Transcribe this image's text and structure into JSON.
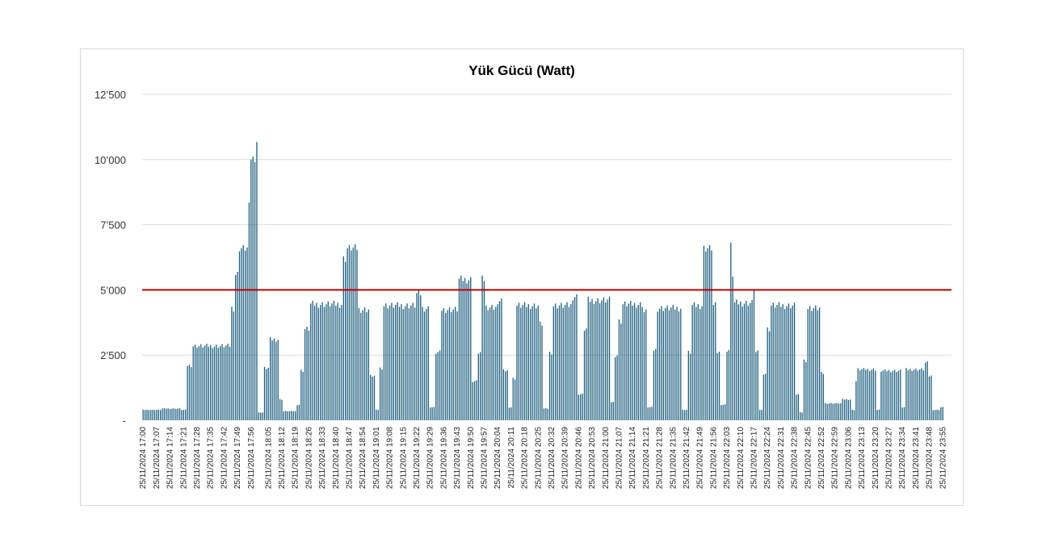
{
  "chart_data": {
    "type": "bar",
    "title": "Yük Gücü (Watt)",
    "xlabel": "",
    "ylabel": "",
    "ylim": [
      0,
      12500
    ],
    "y_ticks": [
      {
        "value": 0,
        "label": "-"
      },
      {
        "value": 2500,
        "label": "2’500"
      },
      {
        "value": 5000,
        "label": "5’000"
      },
      {
        "value": 7500,
        "label": "7’500"
      },
      {
        "value": 10000,
        "label": "10’000"
      },
      {
        "value": 12500,
        "label": "12’500"
      }
    ],
    "grid": true,
    "bar_color": "#1f5f7f",
    "threshold": {
      "value": 5000,
      "color": "#c00000"
    },
    "x_start": "25/11/2024 17:00",
    "x_end": "25/11/2024 23:59",
    "interval_minutes": 1,
    "tick_labels": [
      "25/11/2024 17:00",
      "25/11/2024 17:07",
      "25/11/2024 17:14",
      "25/11/2024 17:21",
      "25/11/2024 17:28",
      "25/11/2024 17:35",
      "25/11/2024 17:42",
      "25/11/2024 17:49",
      "25/11/2024 17:56",
      "25/11/2024 18:05",
      "25/11/2024 18:12",
      "25/11/2024 18:19",
      "25/11/2024 18:26",
      "25/11/2024 18:33",
      "25/11/2024 18:40",
      "25/11/2024 18:47",
      "25/11/2024 18:54",
      "25/11/2024 19:01",
      "25/11/2024 19:08",
      "25/11/2024 19:15",
      "25/11/2024 19:22",
      "25/11/2024 19:29",
      "25/11/2024 19:36",
      "25/11/2024 19:43",
      "25/11/2024 19:50",
      "25/11/2024 19:57",
      "25/11/2024 20:04",
      "25/11/2024 20:11",
      "25/11/2024 20:18",
      "25/11/2024 20:25",
      "25/11/2024 20:32",
      "25/11/2024 20:39",
      "25/11/2024 20:46",
      "25/11/2024 20:53",
      "25/11/2024 21:00",
      "25/11/2024 21:07",
      "25/11/2024 21:14",
      "25/11/2024 21:21",
      "25/11/2024 21:28",
      "25/11/2024 21:35",
      "25/11/2024 21:42",
      "25/11/2024 21:49",
      "25/11/2024 21:56",
      "25/11/2024 22:03",
      "25/11/2024 22:10",
      "25/11/2024 22:17",
      "25/11/2024 22:24",
      "25/11/2024 22:31",
      "25/11/2024 22:38",
      "25/11/2024 22:45",
      "25/11/2024 22:52",
      "25/11/2024 22:59",
      "25/11/2024 23:06",
      "25/11/2024 23:13",
      "25/11/2024 23:20",
      "25/11/2024 23:27",
      "25/11/2024 23:34",
      "25/11/2024 23:41",
      "25/11/2024 23:48",
      "25/11/2024 23:55"
    ],
    "segments": [
      {
        "start": "17:00",
        "end": "17:10",
        "value": 400
      },
      {
        "start": "17:10",
        "end": "17:20",
        "value": 450
      },
      {
        "start": "17:20",
        "end": "17:23",
        "value": 400
      },
      {
        "start": "17:23",
        "end": "17:26",
        "value": 2100
      },
      {
        "start": "17:26",
        "end": "17:46",
        "value": 2850
      },
      {
        "start": "17:46",
        "end": "17:48",
        "value": 4300
      },
      {
        "start": "17:48",
        "end": "17:50",
        "value": 5600
      },
      {
        "start": "17:50",
        "end": "17:55",
        "value": 6600
      },
      {
        "start": "17:55",
        "end": "17:56",
        "value": 8200
      },
      {
        "start": "17:56",
        "end": "17:59",
        "value": 10050
      },
      {
        "start": "17:59",
        "end": "18:00",
        "value": 10700
      },
      {
        "start": "18:00",
        "end": "18:03",
        "value": 300
      },
      {
        "start": "18:03",
        "end": "18:06",
        "value": 2000
      },
      {
        "start": "18:06",
        "end": "18:11",
        "value": 3100
      },
      {
        "start": "18:11",
        "end": "18:13",
        "value": 800
      },
      {
        "start": "18:13",
        "end": "18:20",
        "value": 350
      },
      {
        "start": "18:20",
        "end": "18:22",
        "value": 600
      },
      {
        "start": "18:22",
        "end": "18:24",
        "value": 1900
      },
      {
        "start": "18:24",
        "end": "18:27",
        "value": 3500
      },
      {
        "start": "18:27",
        "end": "18:44",
        "value": 4450
      },
      {
        "start": "18:44",
        "end": "18:46",
        "value": 6200
      },
      {
        "start": "18:46",
        "end": "18:52",
        "value": 6600
      },
      {
        "start": "18:52",
        "end": "18:58",
        "value": 4250
      },
      {
        "start": "18:58",
        "end": "19:01",
        "value": 1700
      },
      {
        "start": "19:01",
        "end": "19:03",
        "value": 400
      },
      {
        "start": "19:03",
        "end": "19:05",
        "value": 2000
      },
      {
        "start": "19:05",
        "end": "19:22",
        "value": 4400
      },
      {
        "start": "19:22",
        "end": "19:25",
        "value": 4850
      },
      {
        "start": "19:25",
        "end": "19:29",
        "value": 4300
      },
      {
        "start": "19:29",
        "end": "19:32",
        "value": 500
      },
      {
        "start": "19:32",
        "end": "19:35",
        "value": 2600
      },
      {
        "start": "19:35",
        "end": "19:44",
        "value": 4250
      },
      {
        "start": "19:44",
        "end": "19:51",
        "value": 5400
      },
      {
        "start": "19:51",
        "end": "19:54",
        "value": 1500
      },
      {
        "start": "19:54",
        "end": "19:56",
        "value": 2600
      },
      {
        "start": "19:56",
        "end": "19:58",
        "value": 5400
      },
      {
        "start": "19:58",
        "end": "20:05",
        "value": 4350
      },
      {
        "start": "20:05",
        "end": "20:07",
        "value": 4650
      },
      {
        "start": "20:07",
        "end": "20:10",
        "value": 1900
      },
      {
        "start": "20:10",
        "end": "20:12",
        "value": 500
      },
      {
        "start": "20:12",
        "end": "20:14",
        "value": 1600
      },
      {
        "start": "20:14",
        "end": "20:26",
        "value": 4400
      },
      {
        "start": "20:26",
        "end": "20:28",
        "value": 3700
      },
      {
        "start": "20:28",
        "end": "20:31",
        "value": 450
      },
      {
        "start": "20:31",
        "end": "20:33",
        "value": 2600
      },
      {
        "start": "20:33",
        "end": "20:43",
        "value": 4400
      },
      {
        "start": "20:43",
        "end": "20:46",
        "value": 4750
      },
      {
        "start": "20:46",
        "end": "20:49",
        "value": 1000
      },
      {
        "start": "20:49",
        "end": "20:51",
        "value": 3500
      },
      {
        "start": "20:51",
        "end": "21:03",
        "value": 4600
      },
      {
        "start": "21:03",
        "end": "21:05",
        "value": 700
      },
      {
        "start": "21:05",
        "end": "21:07",
        "value": 2500
      },
      {
        "start": "21:07",
        "end": "21:09",
        "value": 3800
      },
      {
        "start": "21:09",
        "end": "21:20",
        "value": 4450
      },
      {
        "start": "21:20",
        "end": "21:22",
        "value": 4150
      },
      {
        "start": "21:22",
        "end": "21:25",
        "value": 500
      },
      {
        "start": "21:25",
        "end": "21:27",
        "value": 2700
      },
      {
        "start": "21:27",
        "end": "21:40",
        "value": 4300
      },
      {
        "start": "21:40",
        "end": "21:43",
        "value": 400
      },
      {
        "start": "21:43",
        "end": "21:45",
        "value": 2600
      },
      {
        "start": "21:45",
        "end": "21:51",
        "value": 4400
      },
      {
        "start": "21:51",
        "end": "21:56",
        "value": 6600
      },
      {
        "start": "21:56",
        "end": "21:58",
        "value": 4400
      },
      {
        "start": "21:58",
        "end": "22:00",
        "value": 2600
      },
      {
        "start": "22:00",
        "end": "22:03",
        "value": 600
      },
      {
        "start": "22:03",
        "end": "22:05",
        "value": 2700
      },
      {
        "start": "22:05",
        "end": "22:06",
        "value": 6700
      },
      {
        "start": "22:06",
        "end": "22:07",
        "value": 5600
      },
      {
        "start": "22:07",
        "end": "22:17",
        "value": 4500
      },
      {
        "start": "22:17",
        "end": "22:18",
        "value": 5100
      },
      {
        "start": "22:18",
        "end": "22:20",
        "value": 2600
      },
      {
        "start": "22:20",
        "end": "22:22",
        "value": 400
      },
      {
        "start": "22:22",
        "end": "22:24",
        "value": 1800
      },
      {
        "start": "22:24",
        "end": "22:26",
        "value": 3500
      },
      {
        "start": "22:26",
        "end": "22:39",
        "value": 4400
      },
      {
        "start": "22:39",
        "end": "22:41",
        "value": 1000
      },
      {
        "start": "22:41",
        "end": "22:43",
        "value": 300
      },
      {
        "start": "22:43",
        "end": "22:45",
        "value": 2300
      },
      {
        "start": "22:45",
        "end": "22:52",
        "value": 4300
      },
      {
        "start": "22:52",
        "end": "22:54",
        "value": 1800
      },
      {
        "start": "22:54",
        "end": "23:03",
        "value": 650
      },
      {
        "start": "23:03",
        "end": "23:08",
        "value": 800
      },
      {
        "start": "23:08",
        "end": "23:10",
        "value": 400
      },
      {
        "start": "23:10",
        "end": "23:11",
        "value": 1500
      },
      {
        "start": "23:11",
        "end": "23:21",
        "value": 1950
      },
      {
        "start": "23:21",
        "end": "23:23",
        "value": 400
      },
      {
        "start": "23:23",
        "end": "23:34",
        "value": 1900
      },
      {
        "start": "23:34",
        "end": "23:36",
        "value": 500
      },
      {
        "start": "23:36",
        "end": "23:46",
        "value": 1950
      },
      {
        "start": "23:46",
        "end": "23:48",
        "value": 2200
      },
      {
        "start": "23:48",
        "end": "23:50",
        "value": 1700
      },
      {
        "start": "23:50",
        "end": "23:54",
        "value": 400
      },
      {
        "start": "23:54",
        "end": "23:56",
        "value": 500
      }
    ]
  }
}
